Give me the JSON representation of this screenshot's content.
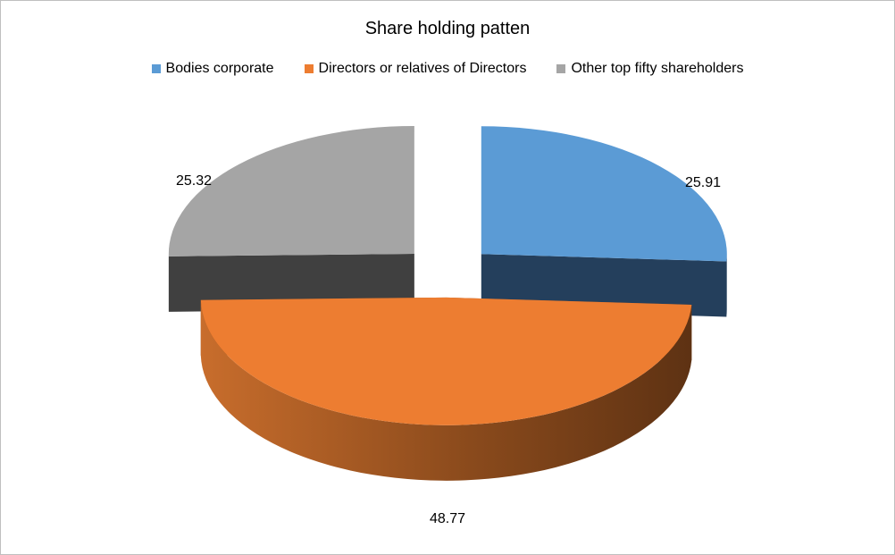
{
  "chart_data": {
    "type": "pie",
    "variant": "3d-exploded",
    "title": "Share holding patten",
    "categories": [
      "Bodies corporate",
      "Directors or relatives of Directors",
      "Other top fifty shareholders"
    ],
    "values": [
      25.91,
      48.77,
      25.32
    ],
    "colors": [
      "#5b9bd5",
      "#ed7d31",
      "#a5a5a5"
    ],
    "side_colors": [
      "#243f5c",
      "#8c4a1d",
      "#404040"
    ],
    "legend_position": "top",
    "data_labels": [
      "25.91",
      "48.77",
      "25.32"
    ]
  }
}
